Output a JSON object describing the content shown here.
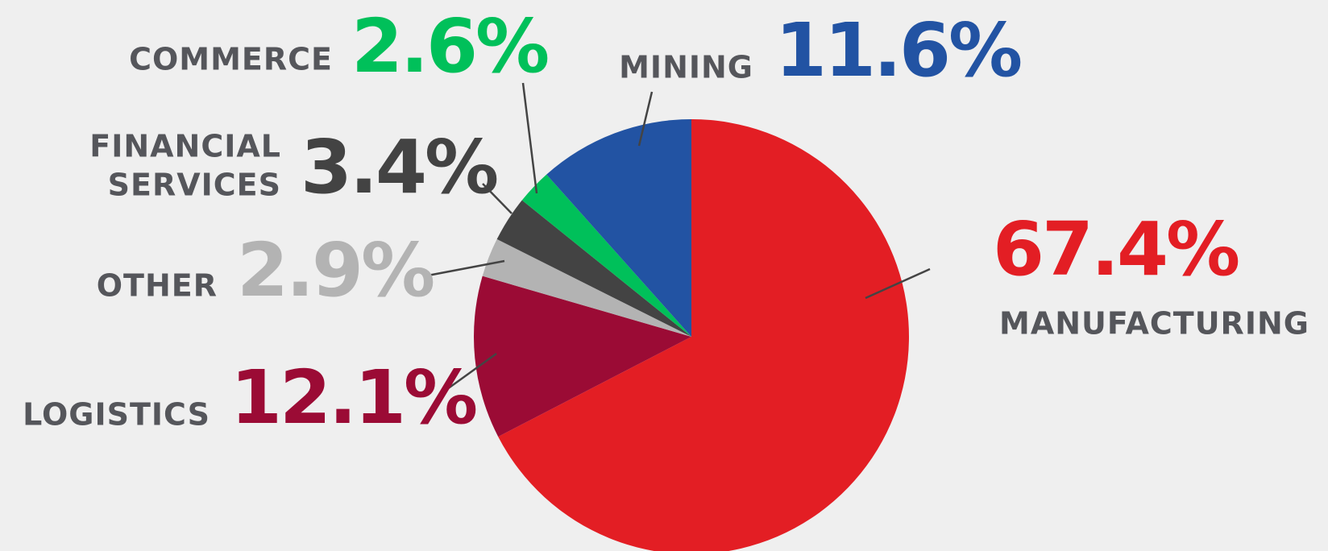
{
  "chart_data": {
    "type": "pie",
    "categories": [
      "MANUFACTURING",
      "LOGISTICS",
      "OTHER",
      "FINANCIAL SERVICES",
      "COMMERCE",
      "MINING"
    ],
    "values": [
      67.4,
      12.1,
      2.9,
      3.4,
      2.6,
      11.6
    ],
    "value_labels": [
      "67.4%",
      "12.1%",
      "2.9%",
      "3.4%",
      "2.6%",
      "11.6%"
    ],
    "colors": [
      "#e31e24",
      "#9b0b35",
      "#b3b3b3",
      "#434343",
      "#00c05a",
      "#2253a3"
    ]
  }
}
